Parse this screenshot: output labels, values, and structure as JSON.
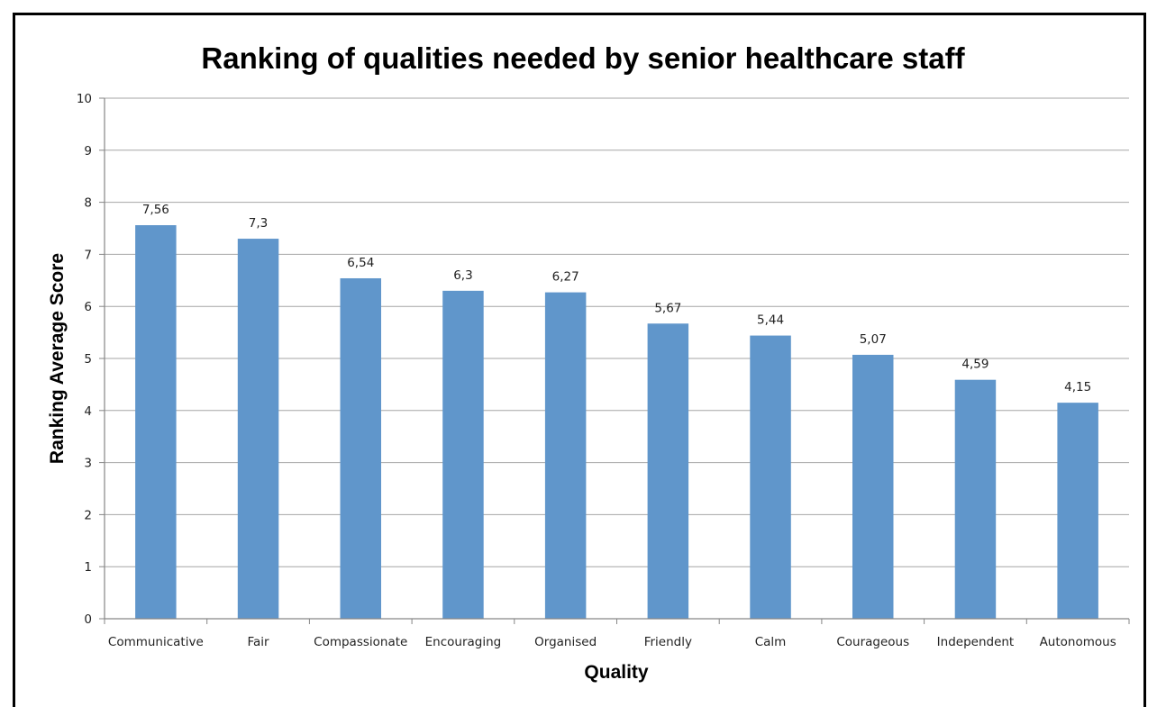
{
  "chart_data": {
    "type": "bar",
    "title": "Ranking of qualities needed by senior healthcare staff",
    "xlabel": "Quality",
    "ylabel": "Ranking Average Score",
    "categories": [
      "Communicative",
      "Fair",
      "Compassionate",
      "Encouraging",
      "Organised",
      "Friendly",
      "Calm",
      "Courageous",
      "Independent",
      "Autonomous"
    ],
    "values": [
      7.56,
      7.3,
      6.54,
      6.3,
      6.27,
      5.67,
      5.44,
      5.07,
      4.59,
      4.15
    ],
    "data_labels": [
      "7,56",
      "7,3",
      "6,54",
      "6,3",
      "6,27",
      "5,67",
      "5,44",
      "5,07",
      "4,59",
      "4,15"
    ],
    "ylim": [
      0,
      10
    ],
    "yticks": [
      0,
      1,
      2,
      3,
      4,
      5,
      6,
      7,
      8,
      9,
      10
    ],
    "grid": true,
    "legend": "none",
    "bar_color": "#6096CB"
  }
}
